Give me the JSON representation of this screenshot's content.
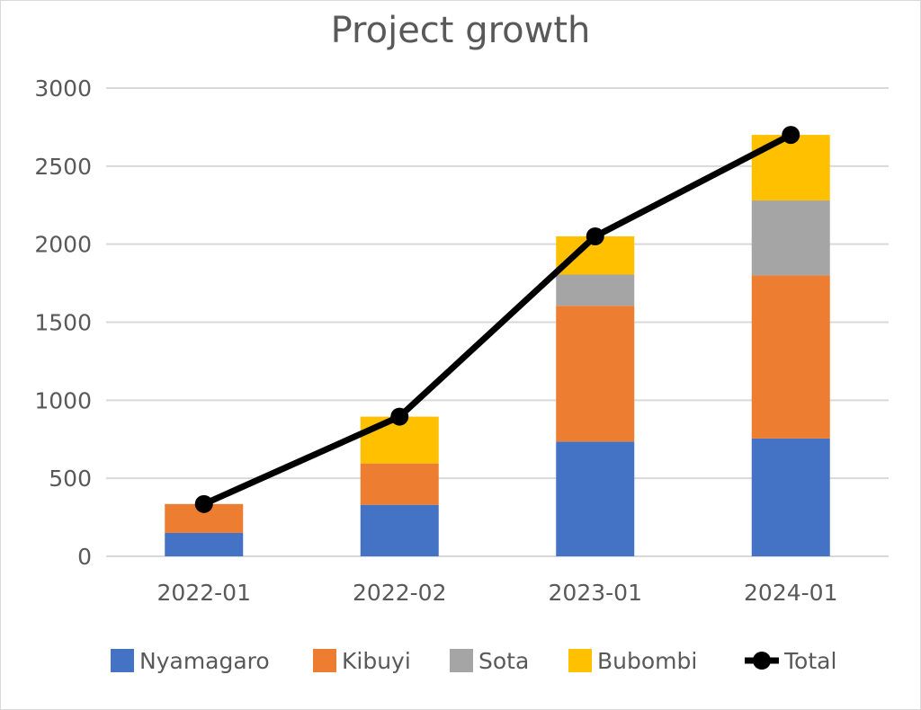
{
  "chart_data": {
    "type": "bar",
    "stacked": true,
    "title": "Project growth",
    "categories": [
      "2022-01",
      "2022-02",
      "2023-01",
      "2024-01"
    ],
    "series": [
      {
        "name": "Nyamagaro",
        "values": [
          150,
          330,
          735,
          755
        ],
        "color": "#4472c4"
      },
      {
        "name": "Kibuyi",
        "values": [
          185,
          265,
          870,
          1045
        ],
        "color": "#ed7d31"
      },
      {
        "name": "Sota",
        "values": [
          0,
          0,
          200,
          480
        ],
        "color": "#a5a5a5"
      },
      {
        "name": "Bubombi",
        "values": [
          0,
          300,
          245,
          420
        ],
        "color": "#ffc000"
      }
    ],
    "line_series": {
      "name": "Total",
      "values": [
        335,
        895,
        2050,
        2700
      ],
      "color": "#000000"
    },
    "ylim": [
      0,
      3000
    ],
    "yticks": [
      0,
      500,
      1000,
      1500,
      2000,
      2500,
      3000
    ],
    "grid": true,
    "legend_position": "bottom"
  }
}
